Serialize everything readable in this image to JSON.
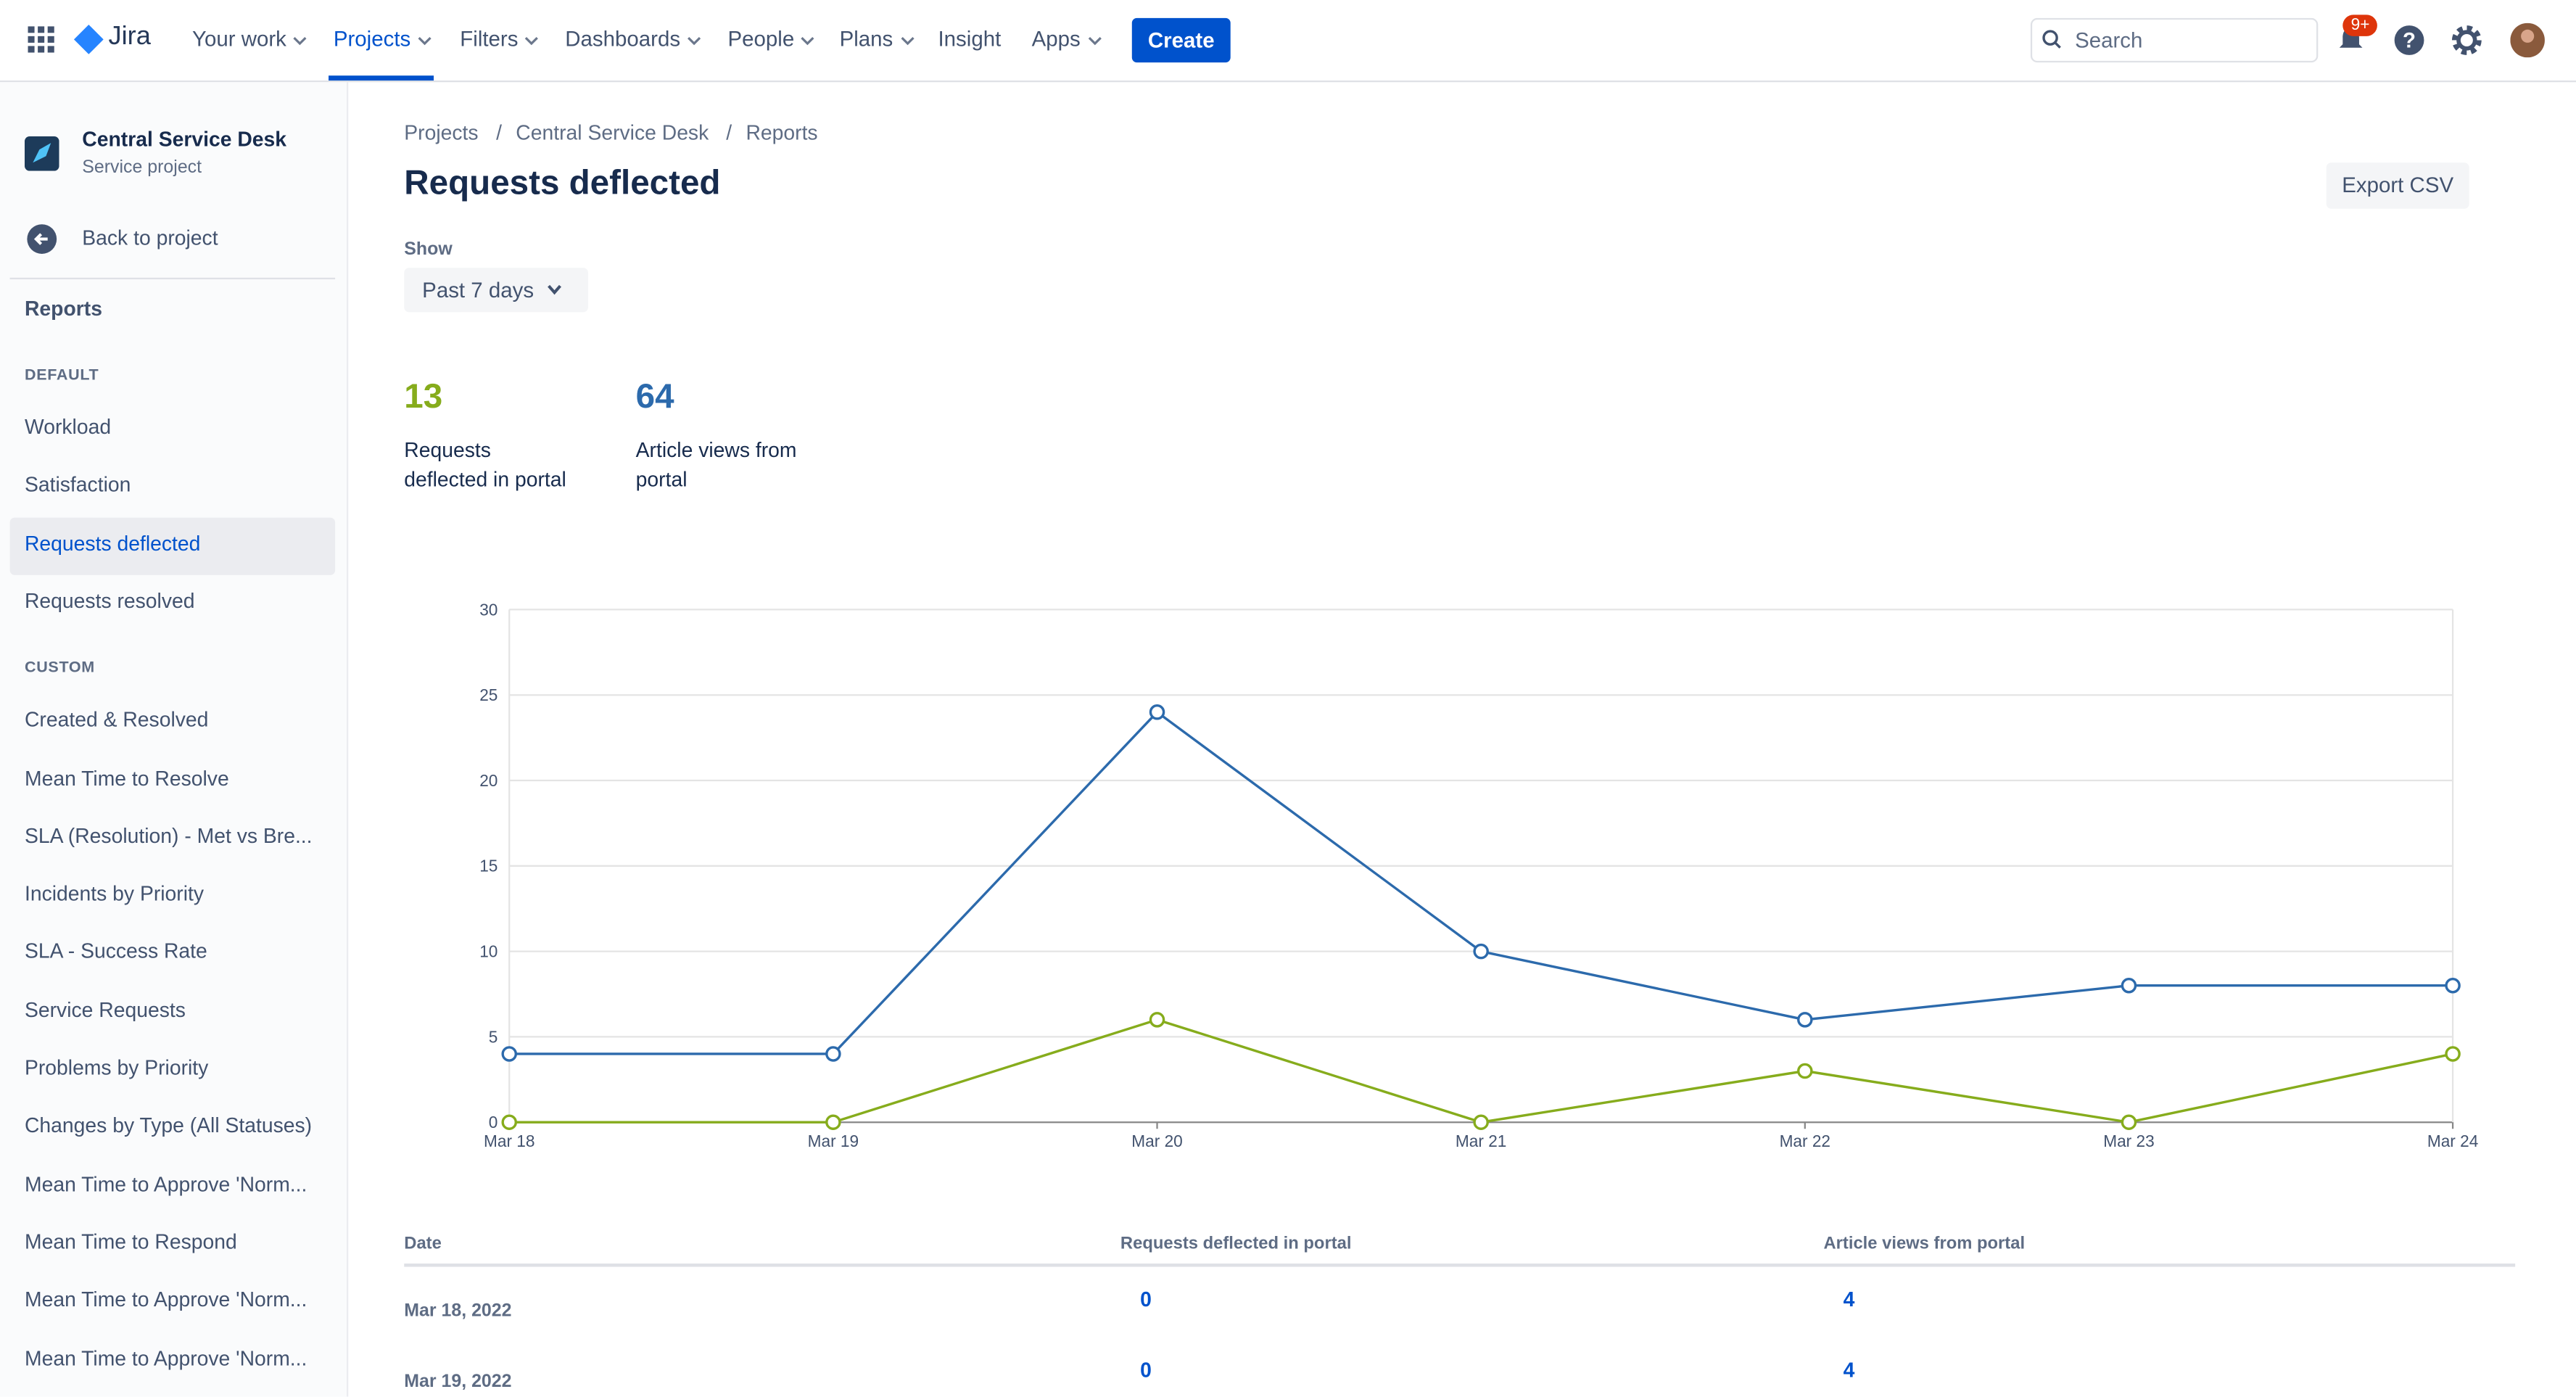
{
  "nav": {
    "logo": "Jira",
    "items": [
      "Your work",
      "Projects",
      "Filters",
      "Dashboards",
      "People",
      "Plans",
      "Insight",
      "Apps"
    ],
    "create": "Create",
    "search": "Search",
    "badge": "9+"
  },
  "sidebar": {
    "project": "Central Service Desk",
    "project_type": "Service project",
    "back": "Back to project",
    "section": "Reports",
    "groups": [
      {
        "header": "DEFAULT",
        "items": [
          "Workload",
          "Satisfaction",
          "Requests deflected",
          "Requests resolved"
        ]
      },
      {
        "header": "CUSTOM",
        "items": [
          "Created & Resolved",
          "Mean Time to Resolve",
          "SLA (Resolution) - Met vs Bre...",
          "Incidents by Priority",
          "SLA - Success Rate",
          "Service Requests",
          "Problems by Priority",
          "Changes by Type (All Statuses)",
          "Mean Time to Approve 'Norm...",
          "Mean Time to Respond",
          "Mean Time to Approve 'Norm...",
          "Mean Time to Approve 'Norm..."
        ]
      }
    ]
  },
  "breadcrumbs": [
    "Projects",
    "Central Service Desk",
    "Reports"
  ],
  "title": "Requests deflected",
  "export": "Export CSV",
  "show_label": "Show",
  "period": "Past 7 days",
  "stats": [
    {
      "value": "13",
      "label_lines": [
        "Requests",
        "deflected in portal"
      ]
    },
    {
      "value": "64",
      "label_lines": [
        "Article views from",
        "portal"
      ]
    }
  ],
  "chart_data": {
    "type": "line",
    "categories": [
      "Mar 18",
      "Mar 19",
      "Mar 20",
      "Mar 21",
      "Mar 22",
      "Mar 23",
      "Mar 24"
    ],
    "ylim": [
      0,
      30
    ],
    "yticks": [
      0,
      5,
      10,
      15,
      20,
      25,
      30
    ],
    "grid": true,
    "series": [
      {
        "color": "#2c6aac",
        "values": [
          4,
          4,
          24,
          10,
          6,
          8,
          8
        ]
      },
      {
        "color": "#86ac1c",
        "values": [
          0,
          0,
          6,
          0,
          3,
          0,
          4
        ]
      }
    ]
  },
  "table": {
    "headers": [
      "Date",
      "Requests deflected in portal",
      "Article views from portal"
    ],
    "rows": [
      [
        "Mar 18, 2022",
        "0",
        "4"
      ],
      [
        "Mar 19, 2022",
        "0",
        "4"
      ]
    ]
  }
}
